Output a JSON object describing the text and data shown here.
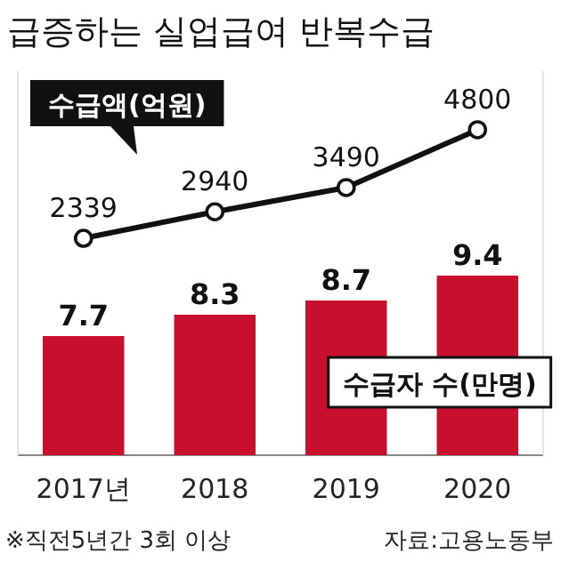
{
  "chart_data": {
    "type": "bar",
    "title": "급증하는 실업급여 반복수급",
    "categories": [
      "2017년",
      "2018",
      "2019",
      "2020"
    ],
    "series": [
      {
        "name": "수급자 수(만명)",
        "color": "#c8102e",
        "values": [
          7.7,
          8.3,
          8.7,
          9.4
        ]
      },
      {
        "name": "수급액(억원)",
        "type": "line",
        "axis": "y2",
        "color": "#111111",
        "values": [
          2339,
          2940,
          3490,
          4800
        ]
      }
    ],
    "ylim": [
      4.35,
      15.15
    ],
    "y2lim": [
      -2580,
      6130
    ],
    "tick_labels": "x",
    "data_labels": true,
    "marker": "circle",
    "line_style": "solid",
    "grid": false,
    "legend": false,
    "annotations": [
      "※직전5년간 3회 이상",
      "자료:고용노동부"
    ]
  }
}
